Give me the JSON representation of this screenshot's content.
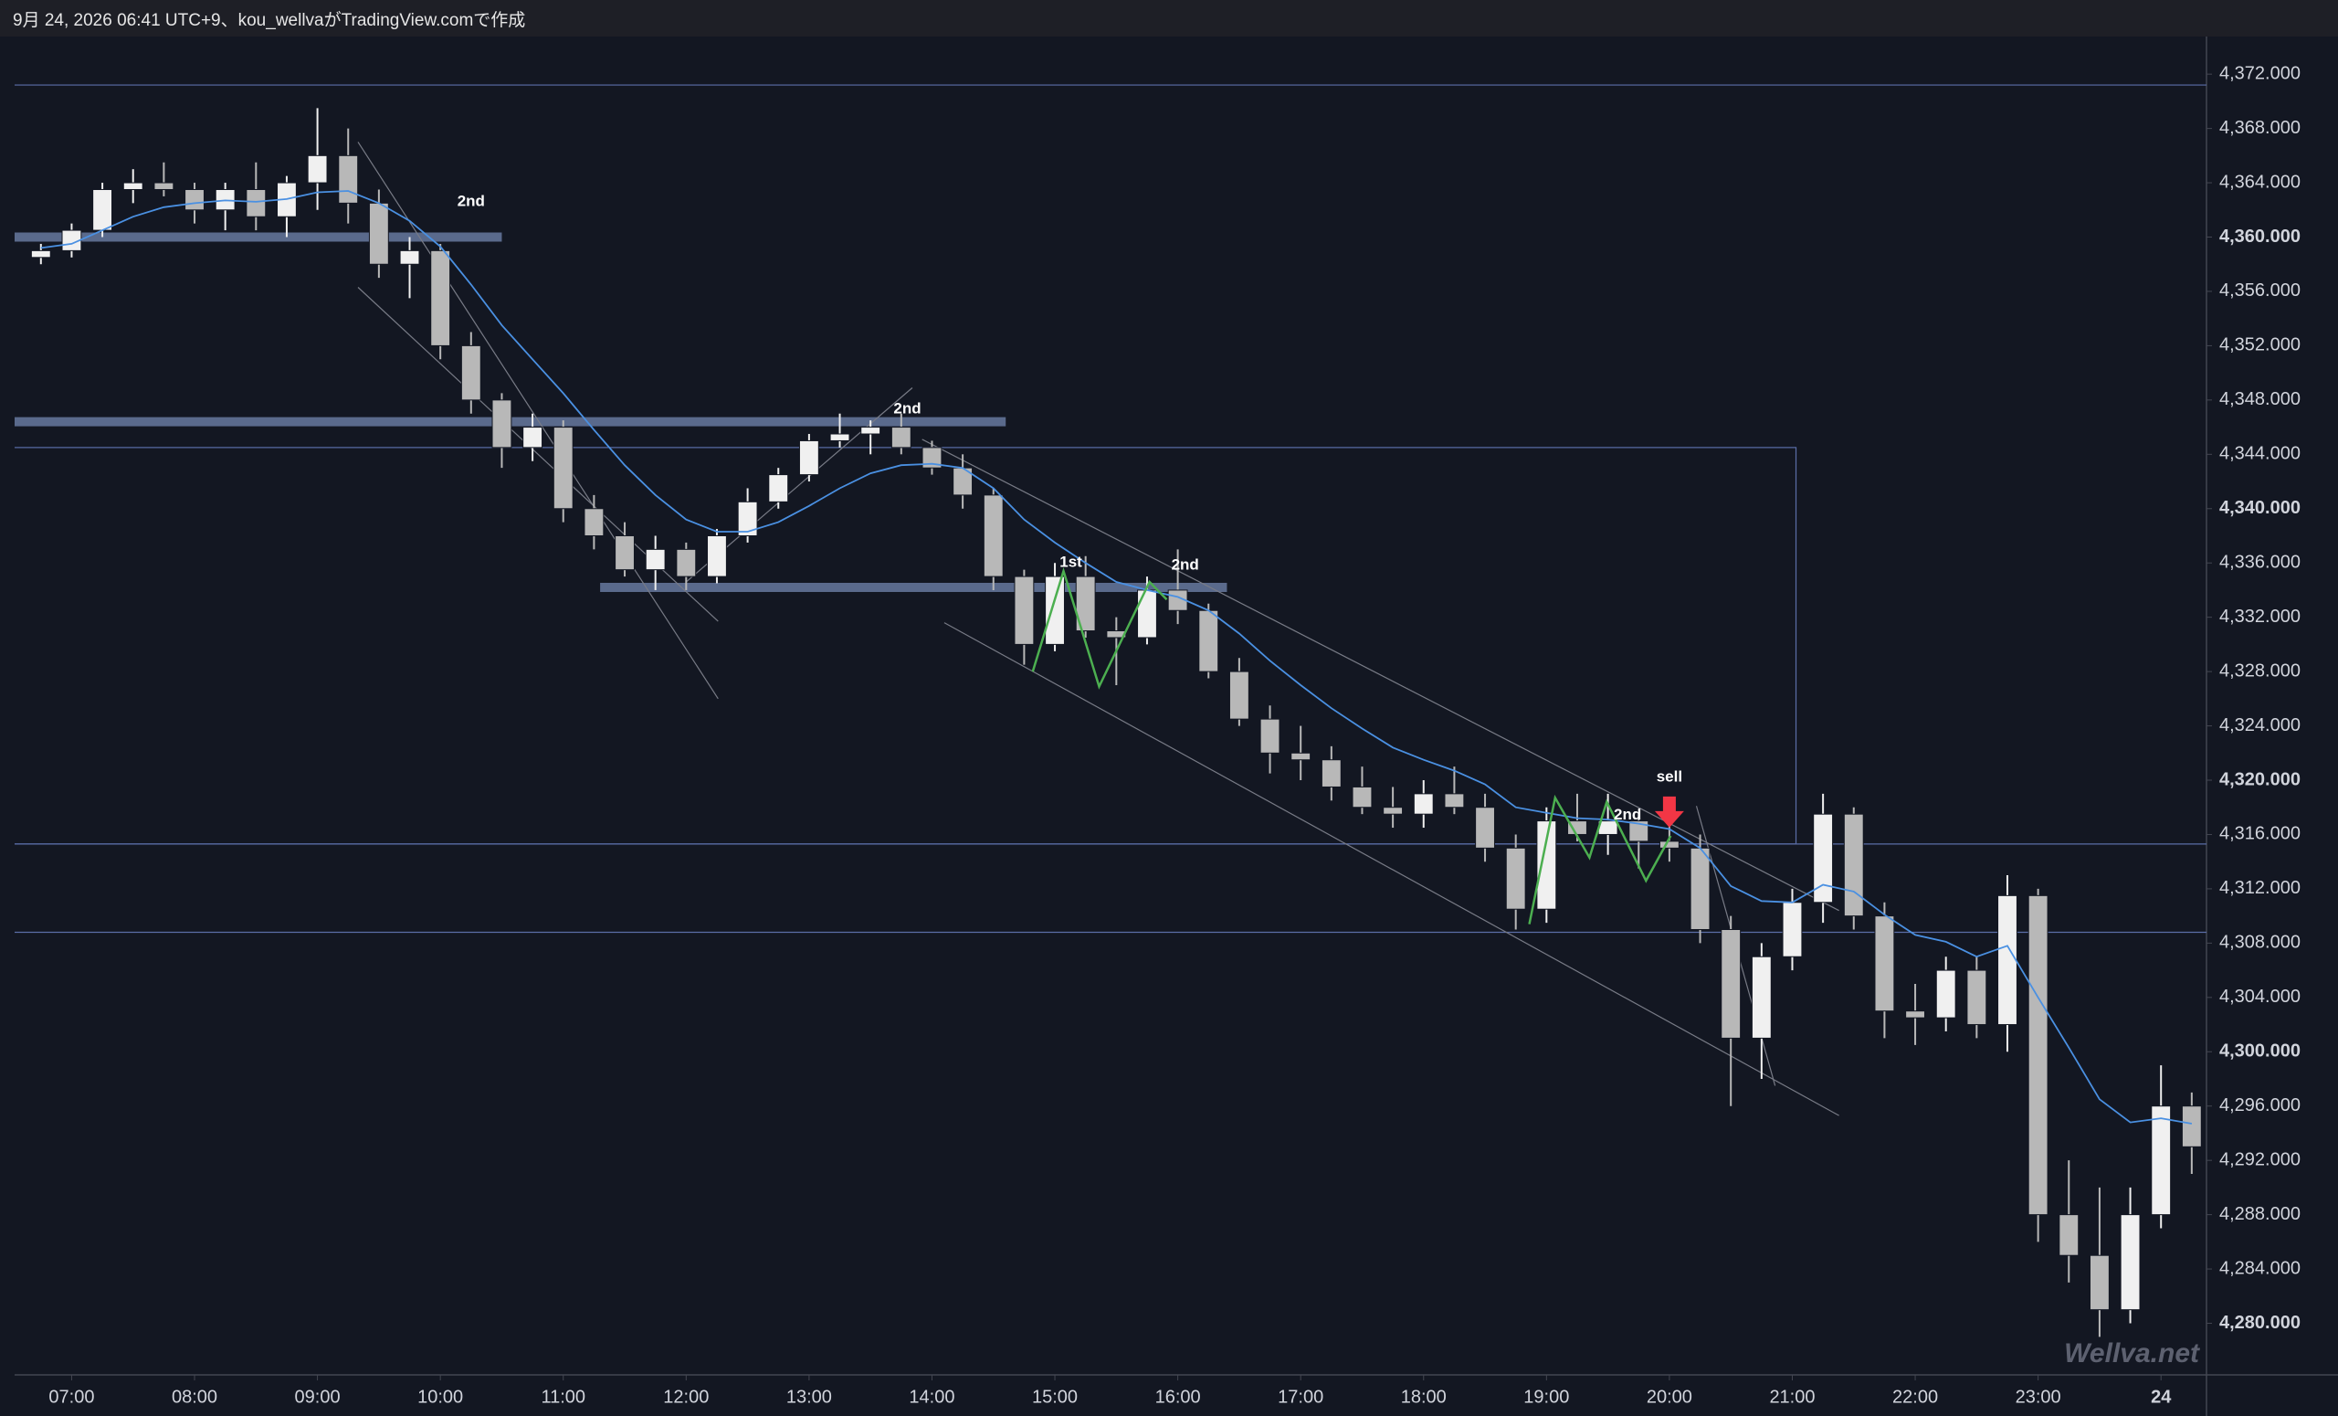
{
  "chart_data": {
    "type": "candlestick",
    "header": "9月 24, 2026 06:41 UTC+9、kou_wellvaがTradingView.comで作成",
    "watermark": "Wellva.net",
    "up_color": "#f0f0f0",
    "down_color": "#b8b8b8",
    "xlim": [
      6.536,
      24.37
    ],
    "ylim": [
      4276.2,
      4374.5
    ],
    "xticks": [
      {
        "value": 7,
        "label": "07:00"
      },
      {
        "value": 8,
        "label": "08:00"
      },
      {
        "value": 9,
        "label": "09:00"
      },
      {
        "value": 10,
        "label": "10:00"
      },
      {
        "value": 11,
        "label": "11:00"
      },
      {
        "value": 12,
        "label": "12:00"
      },
      {
        "value": 13,
        "label": "13:00"
      },
      {
        "value": 14,
        "label": "14:00"
      },
      {
        "value": 15,
        "label": "15:00"
      },
      {
        "value": 16,
        "label": "16:00"
      },
      {
        "value": 17,
        "label": "17:00"
      },
      {
        "value": 18,
        "label": "18:00"
      },
      {
        "value": 19,
        "label": "19:00"
      },
      {
        "value": 20,
        "label": "20:00"
      },
      {
        "value": 21,
        "label": "21:00"
      },
      {
        "value": 22,
        "label": "22:00"
      },
      {
        "value": 23,
        "label": "23:00"
      },
      24
    ],
    "yticks": [
      {
        "value": 4372,
        "label": "4,372.000"
      },
      {
        "value": 4368,
        "label": "4,368.000"
      },
      {
        "value": 4364,
        "label": "4,364.000"
      },
      {
        "value": 4360,
        "label": "4,360.000"
      },
      {
        "value": 4356,
        "label": "4,356.000"
      },
      {
        "value": 4352,
        "label": "4,352.000"
      },
      {
        "value": 4348,
        "label": "4,348.000"
      },
      {
        "value": 4344,
        "label": "4,344.000"
      },
      {
        "value": 4340,
        "label": "4,340.000"
      },
      {
        "value": 4336,
        "label": "4,336.000"
      },
      {
        "value": 4332,
        "label": "4,332.000"
      },
      {
        "value": 4328,
        "label": "4,328.000"
      },
      {
        "value": 4324,
        "label": "4,324.000"
      },
      {
        "value": 4320,
        "label": "4,320.000"
      },
      {
        "value": 4316,
        "label": "4,316.000"
      },
      {
        "value": 4312,
        "label": "4,312.000"
      },
      {
        "value": 4308,
        "label": "4,308.000"
      },
      {
        "value": 4304,
        "label": "4,304.000"
      },
      {
        "value": 4300,
        "label": "4,300.000"
      },
      {
        "value": 4296,
        "label": "4,296.000"
      },
      {
        "value": 4292,
        "label": "4,292.000"
      },
      {
        "value": 4288,
        "label": "4,288.000"
      },
      {
        "value": 4284,
        "label": "4,284.000"
      },
      {
        "value": 4280,
        "label": "4,280.000"
      }
    ],
    "x": [
      6.75,
      7,
      7.25,
      7.5,
      7.75,
      8,
      8.25,
      8.5,
      8.75,
      9,
      9.25,
      9.5,
      9.75,
      10,
      10.25,
      10.5,
      10.75,
      11,
      11.25,
      11.5,
      11.75,
      12,
      12.25,
      12.5,
      12.75,
      13,
      13.25,
      13.5,
      13.75,
      14,
      14.25,
      14.5,
      14.75,
      15,
      15.25,
      15.5,
      15.75,
      16,
      16.25,
      16.5,
      16.75,
      17,
      17.25,
      17.5,
      17.75,
      18,
      18.25,
      18.5,
      18.75,
      19,
      19.25,
      19.5,
      19.75,
      20,
      20.25,
      20.5,
      20.75,
      21,
      21.25,
      21.5,
      21.75,
      22,
      22.25,
      22.5,
      22.75,
      23,
      23.25,
      23.5,
      23.75,
      24,
      24.25
    ],
    "open": [
      4358.5,
      4359,
      4360.5,
      4363.5,
      4364,
      4363.5,
      4362,
      4363.5,
      4361.5,
      4364,
      4366,
      4362.5,
      4358,
      4359,
      4352,
      4348,
      4344.5,
      4346,
      4340,
      4338,
      4335.5,
      4337,
      4335,
      4338,
      4340.5,
      4342.5,
      4345,
      4345.5,
      4346,
      4344.5,
      4343,
      4341,
      4335,
      4330,
      4335,
      4331,
      4330.5,
      4334,
      4332.5,
      4328,
      4324.5,
      4322,
      4321.5,
      4319.5,
      4318,
      4317.5,
      4319,
      4318,
      4315,
      4310.5,
      4317,
      4316,
      4317,
      4315.5,
      4315,
      4309,
      4301,
      4307,
      4311,
      4317.5,
      4310,
      4303,
      4302.5,
      4306,
      4302,
      4311.5,
      4288,
      4285,
      4281,
      4288,
      4296
    ],
    "high": [
      4359.5,
      4361,
      4364,
      4365,
      4365.5,
      4364,
      4364,
      4365.5,
      4364.5,
      4369.5,
      4368,
      4363.5,
      4360,
      4359.5,
      4353,
      4348.5,
      4347,
      4346.5,
      4341,
      4339,
      4338,
      4337.5,
      4338.5,
      4341.5,
      4343,
      4345.5,
      4347,
      4346.5,
      4347,
      4345,
      4344,
      4341.5,
      4335.5,
      4336,
      4336.5,
      4332,
      4335,
      4337,
      4333,
      4329,
      4325.5,
      4324,
      4322.5,
      4321,
      4319.5,
      4320,
      4321,
      4319,
      4316,
      4318,
      4319,
      4319,
      4317.5,
      4317,
      4316,
      4310,
      4308,
      4312,
      4319,
      4318,
      4311,
      4305,
      4307,
      4307,
      4313,
      4312,
      4292,
      4290,
      4290,
      4299,
      4297
    ],
    "low": [
      4358,
      4358.5,
      4360,
      4362.5,
      4363,
      4361,
      4360.5,
      4360.5,
      4360,
      4362,
      4361,
      4357,
      4355.5,
      4351,
      4347,
      4343,
      4343.5,
      4339,
      4337,
      4335,
      4334,
      4334,
      4334.5,
      4337.5,
      4340,
      4342,
      4344.5,
      4344,
      4344,
      4342.5,
      4340,
      4334,
      4328.5,
      4329.5,
      4330.5,
      4327,
      4330,
      4331.5,
      4327.5,
      4324,
      4320.5,
      4320,
      4318.5,
      4317.5,
      4316.5,
      4316.5,
      4317.5,
      4314,
      4309,
      4309.5,
      4315.5,
      4314.5,
      4313.5,
      4314,
      4308,
      4296,
      4298,
      4306,
      4309.5,
      4309,
      4301,
      4300.5,
      4301.5,
      4301,
      4300,
      4286,
      4283,
      4279,
      4280,
      4287,
      4291
    ],
    "close": [
      4359,
      4360.5,
      4363.5,
      4364,
      4363.5,
      4362,
      4363.5,
      4361.5,
      4364,
      4366,
      4362.5,
      4358,
      4359,
      4352,
      4348,
      4344.5,
      4346,
      4340,
      4338,
      4335.5,
      4337,
      4335,
      4338,
      4340.5,
      4342.5,
      4345,
      4345.5,
      4346,
      4344.5,
      4343,
      4341,
      4335,
      4330,
      4335,
      4331,
      4330.5,
      4334,
      4332.5,
      4328,
      4324.5,
      4322,
      4321.5,
      4319.5,
      4318,
      4317.5,
      4319,
      4318,
      4315,
      4310.5,
      4317,
      4316,
      4317,
      4315.5,
      4315,
      4309,
      4301,
      4307,
      4311,
      4317.5,
      4310,
      4303,
      4302.5,
      4306,
      4302,
      4311.5,
      4288,
      4285,
      4281,
      4288,
      4296,
      4293
    ],
    "ma": {
      "color": "#4a90e2",
      "values": [
        4359.2,
        4359.5,
        4360.5,
        4361.5,
        4362.2,
        4362.5,
        4362.7,
        4362.6,
        4362.8,
        4363.3,
        4363.4,
        4362.5,
        4361.2,
        4359.3,
        4356.5,
        4353.5,
        4351,
        4348.5,
        4345.8,
        4343.2,
        4341,
        4339.2,
        4338.3,
        4338.3,
        4339,
        4340.2,
        4341.5,
        4342.6,
        4343.2,
        4343.3,
        4343,
        4341.5,
        4339.2,
        4337.5,
        4336,
        4334.6,
        4334,
        4333.5,
        4332.5,
        4330.8,
        4328.8,
        4327,
        4325.3,
        4323.8,
        4322.4,
        4321.5,
        4320.7,
        4319.7,
        4318,
        4317.6,
        4317.2,
        4317.1,
        4316.8,
        4316.4,
        4315,
        4312.2,
        4311.1,
        4311,
        4312.3,
        4311.8,
        4310.1,
        4308.6,
        4308.1,
        4307,
        4307.8,
        4304,
        4300.3,
        4296.5,
        4294.8,
        4295.1,
        4294.7
      ]
    },
    "zones": [
      {
        "value": 4360,
        "from": 6.5,
        "to": 10.5
      },
      {
        "value": 4346.4,
        "from": 6.5,
        "to": 14.6
      },
      {
        "value": 4334.2,
        "from": 11.3,
        "to": 16.4
      }
    ],
    "lines": [
      {
        "value": 4371.2
      },
      {
        "value": 4315.3
      },
      {
        "value": 4308.8
      }
    ],
    "box": {
      "x": [
        6.5,
        21.03
      ],
      "y": [
        4315.3,
        4344.5
      ]
    },
    "trendlines": [
      {
        "x": [
          9.33,
          12.26
        ],
        "y": [
          4367,
          4326
        ]
      },
      {
        "x": [
          9.33,
          12.26
        ],
        "y": [
          4356.3,
          4331.7
        ]
      },
      {
        "x": [
          12.0,
          13.84
        ],
        "y": [
          4334.6,
          4348.9
        ]
      },
      {
        "x": [
          14.1,
          21.38
        ],
        "y": [
          4331.6,
          4295.3
        ]
      },
      {
        "x": [
          13.92,
          21.38
        ],
        "y": [
          4345.1,
          4310.4
        ]
      },
      {
        "x": [
          20.22,
          20.86
        ],
        "y": [
          4318.1,
          4297.5
        ]
      }
    ],
    "zigzags": [
      {
        "color": "#4caf50",
        "x": [
          14.82,
          15.07,
          15.36,
          15.77,
          15.91
        ],
        "y": [
          4328.0,
          4335.4,
          4326.9,
          4334.6,
          4333.3
        ]
      },
      {
        "color": "#4caf50",
        "x": [
          18.86,
          19.07,
          19.35,
          19.49,
          19.81,
          20.01
        ],
        "y": [
          4309.4,
          4318.7,
          4314.3,
          4318.4,
          4312.6,
          4315.9
        ]
      }
    ],
    "annotations": [
      {
        "text": "2nd",
        "x": 10.25,
        "y": 4362.6
      },
      {
        "text": "2nd",
        "x": 13.8,
        "y": 4347.3
      },
      {
        "text": "1st",
        "x": 15.13,
        "y": 4336.0
      },
      {
        "text": "2nd",
        "x": 16.06,
        "y": 4335.8
      },
      {
        "text": "2nd",
        "x": 19.66,
        "y": 4317.4
      },
      {
        "text": "sell",
        "x": 20.0,
        "y": 4320.2
      }
    ],
    "arrow": {
      "x": 20.0,
      "y": 4318.8,
      "color": "#f23645"
    }
  }
}
